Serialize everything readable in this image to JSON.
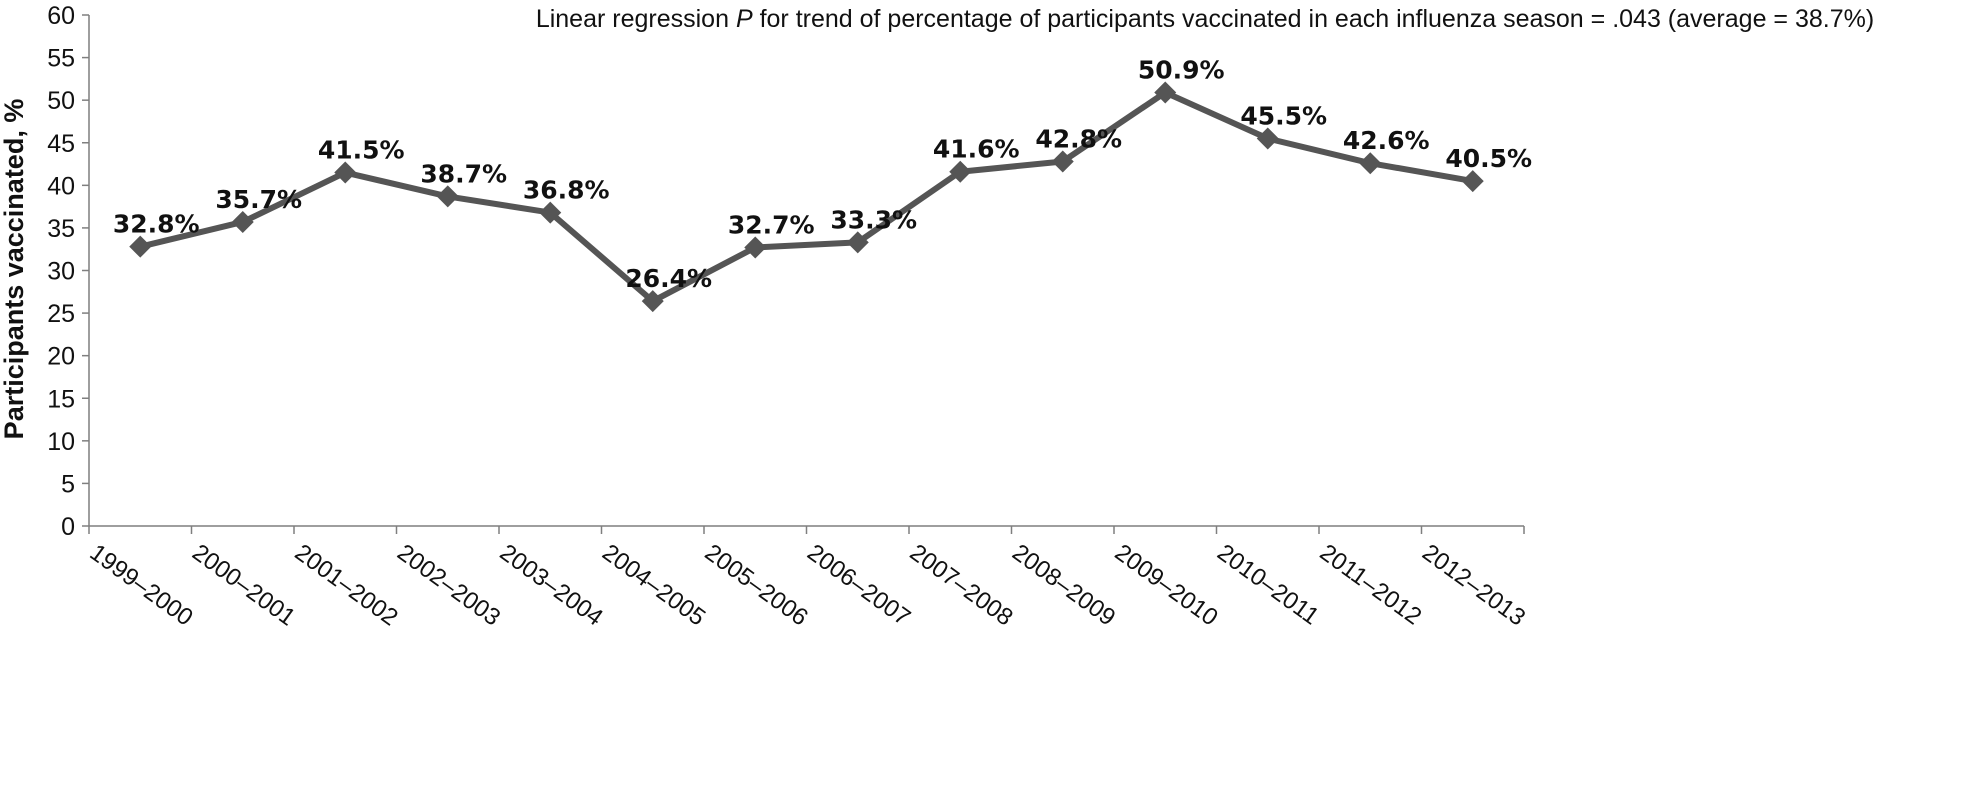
{
  "chart_data": {
    "type": "line",
    "annotation": {
      "before_p": "Linear regression ",
      "p_symbol": "P",
      "after_p": " for trend of percentage of participants vaccinated in each influenza season = .043 (average = 38.7%)"
    },
    "xlabel": "",
    "ylabel": "Participants vaccinated, %",
    "ylim": [
      0,
      60
    ],
    "yticks": [
      0,
      5,
      10,
      15,
      20,
      25,
      30,
      35,
      40,
      45,
      50,
      55,
      60
    ],
    "grid": false,
    "categories": [
      "1999–2000",
      "2000–2001",
      "2001–2002",
      "2002–2003",
      "2003–2004",
      "2004–2005",
      "2005–2006",
      "2006–2007",
      "2007–2008",
      "2008–2009",
      "2009–2010",
      "2010–2011",
      "2011–2012",
      "2012–2013"
    ],
    "series": [
      {
        "values": [
          32.8,
          35.7,
          41.5,
          38.7,
          36.8,
          26.4,
          32.7,
          33.3,
          41.6,
          42.8,
          50.9,
          45.5,
          42.6,
          40.5
        ],
        "data_labels": [
          "32.8%",
          "35.7%",
          "41.5%",
          "38.7%",
          "36.8%",
          "26.4%",
          "32.7%",
          "33.3%",
          "41.6%",
          "42.8%",
          "50.9%",
          "45.5%",
          "42.6%",
          "40.5%"
        ],
        "marker": "diamond",
        "color": "#555555"
      }
    ]
  }
}
